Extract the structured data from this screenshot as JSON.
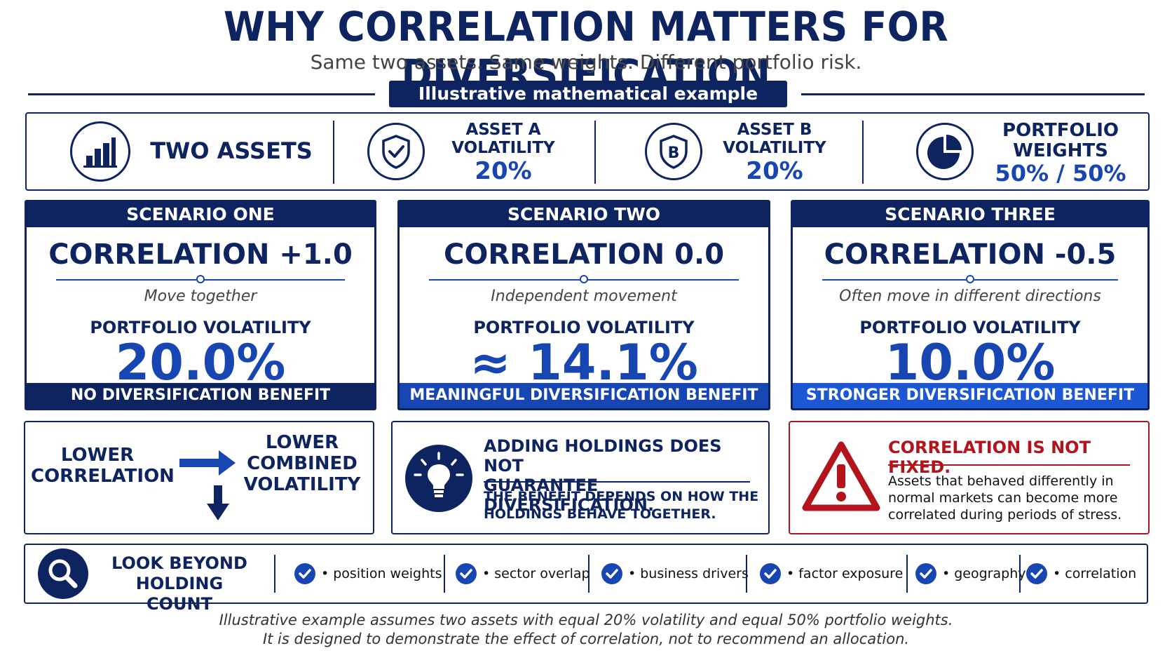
{
  "header": {
    "title": "WHY CORRELATION MATTERS FOR DIVERSIFICATION",
    "subtitle": "Same two assets. Same weights. Different portfolio risk.",
    "ribbon": "Illustrative mathematical example"
  },
  "facts": [
    {
      "icon": "bar-chart-icon",
      "label": "TWO ASSETS"
    },
    {
      "icon": "shield-check-icon",
      "label_line1": "ASSET A",
      "label_line2": "VOLATILITY",
      "value": "20%"
    },
    {
      "icon": "shield-b-icon",
      "label_line1": "ASSET B",
      "label_line2": "VOLATILITY",
      "value": "20%"
    },
    {
      "icon": "pie-chart-icon",
      "label_line1": "PORTFOLIO",
      "label_line2": "WEIGHTS",
      "value": "50% / 50%"
    }
  ],
  "scenarios": [
    {
      "header": "SCENARIO ONE",
      "correlation": "CORRELATION +1.0",
      "description": "Move together",
      "metric_label": "PORTFOLIO VOLATILITY",
      "value": "20.0%",
      "footer": "NO DIVERSIFICATION BENEFIT",
      "footer_color": "#0d2461"
    },
    {
      "header": "SCENARIO TWO",
      "correlation": "CORRELATION 0.0",
      "description": "Independent movement",
      "metric_label": "PORTFOLIO VOLATILITY",
      "value": "≈ 14.1%",
      "footer": "MEANINGFUL DIVERSIFICATION BENEFIT",
      "footer_color": "#1746b3"
    },
    {
      "header": "SCENARIO THREE",
      "correlation": "CORRELATION -0.5",
      "description": "Often move in different directions",
      "metric_label": "PORTFOLIO VOLATILITY",
      "value": "10.0%",
      "footer": "STRONGER DIVERSIFICATION BENEFIT",
      "footer_color": "#1c57d4"
    }
  ],
  "relationship": {
    "left_line1": "LOWER",
    "left_line2": "CORRELATION",
    "right_line1": "LOWER",
    "right_line2": "COMBINED",
    "right_line3": "VOLATILITY"
  },
  "tip": {
    "icon": "lightbulb-icon",
    "heading_line1": "ADDING HOLDINGS DOES NOT",
    "heading_line2": "GUARANTEE DIVERSIFICATION.",
    "body_line1": "THE BENEFIT DEPENDS ON HOW THE",
    "body_line2": "HOLDINGS BEHAVE TOGETHER."
  },
  "warning": {
    "icon": "warning-triangle-icon",
    "heading": "CORRELATION IS NOT FIXED.",
    "body_line1": "Assets that behaved differently in",
    "body_line2": "normal markets can become more",
    "body_line3": "correlated during periods of stress."
  },
  "look_beyond": {
    "icon": "magnifier-icon",
    "line1": "LOOK BEYOND",
    "line2": "HOLDING COUNT",
    "checks": [
      "• position weights",
      "• sector overlap",
      "• business drivers",
      "• factor exposure",
      "• geography",
      "• correlation"
    ]
  },
  "footnote": {
    "line1": "Illustrative example assumes two assets with equal 20% volatility and equal 50% portfolio weights.",
    "line2": "It is designed to demonstrate the effect of correlation, not to recommend an allocation."
  },
  "colors": {
    "navy": "#0d2461",
    "blue": "#1746b3",
    "red": "#b3141c"
  }
}
